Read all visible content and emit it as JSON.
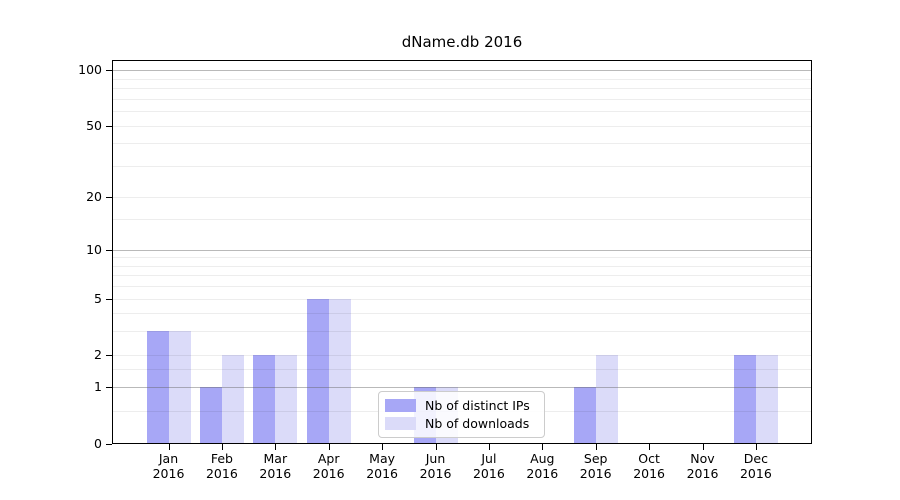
{
  "chart_data": {
    "type": "bar",
    "title": "dName.db 2016",
    "categories": [
      "Jan",
      "Feb",
      "Mar",
      "Apr",
      "May",
      "Jun",
      "Jul",
      "Aug",
      "Sep",
      "Oct",
      "Nov",
      "Dec"
    ],
    "category_year": "2016",
    "series": [
      {
        "name": "Nb of distinct IPs",
        "color": "#a7a7f6",
        "values": [
          3,
          1,
          2,
          5,
          0,
          1,
          0,
          0,
          1,
          0,
          0,
          2
        ]
      },
      {
        "name": "Nb of downloads",
        "color": "#dbdbf9",
        "values": [
          3,
          2,
          2,
          5,
          0,
          1,
          0,
          0,
          2,
          0,
          0,
          2
        ]
      }
    ],
    "yaxis": {
      "scale": "log1p",
      "tick_labels": [
        "0",
        "1",
        "2",
        "5",
        "10",
        "20",
        "50",
        "100"
      ],
      "tick_values": [
        0,
        1,
        2,
        5,
        10,
        20,
        50,
        100
      ],
      "major_gridlines": [
        1,
        10,
        100
      ],
      "minor_gridlines": [
        0.5,
        1.5,
        2,
        3,
        4,
        5,
        6,
        7,
        8,
        9,
        15,
        20,
        30,
        40,
        50,
        60,
        70,
        80,
        90
      ]
    },
    "xaxis": {
      "label_line2": "2016"
    },
    "legend": {
      "position": "bottom-center"
    },
    "colors": {
      "background": "#ffffff",
      "axis": "#000000",
      "major_grid": "#b5b5b5",
      "minor_grid": "#ececec"
    },
    "grid": true
  }
}
